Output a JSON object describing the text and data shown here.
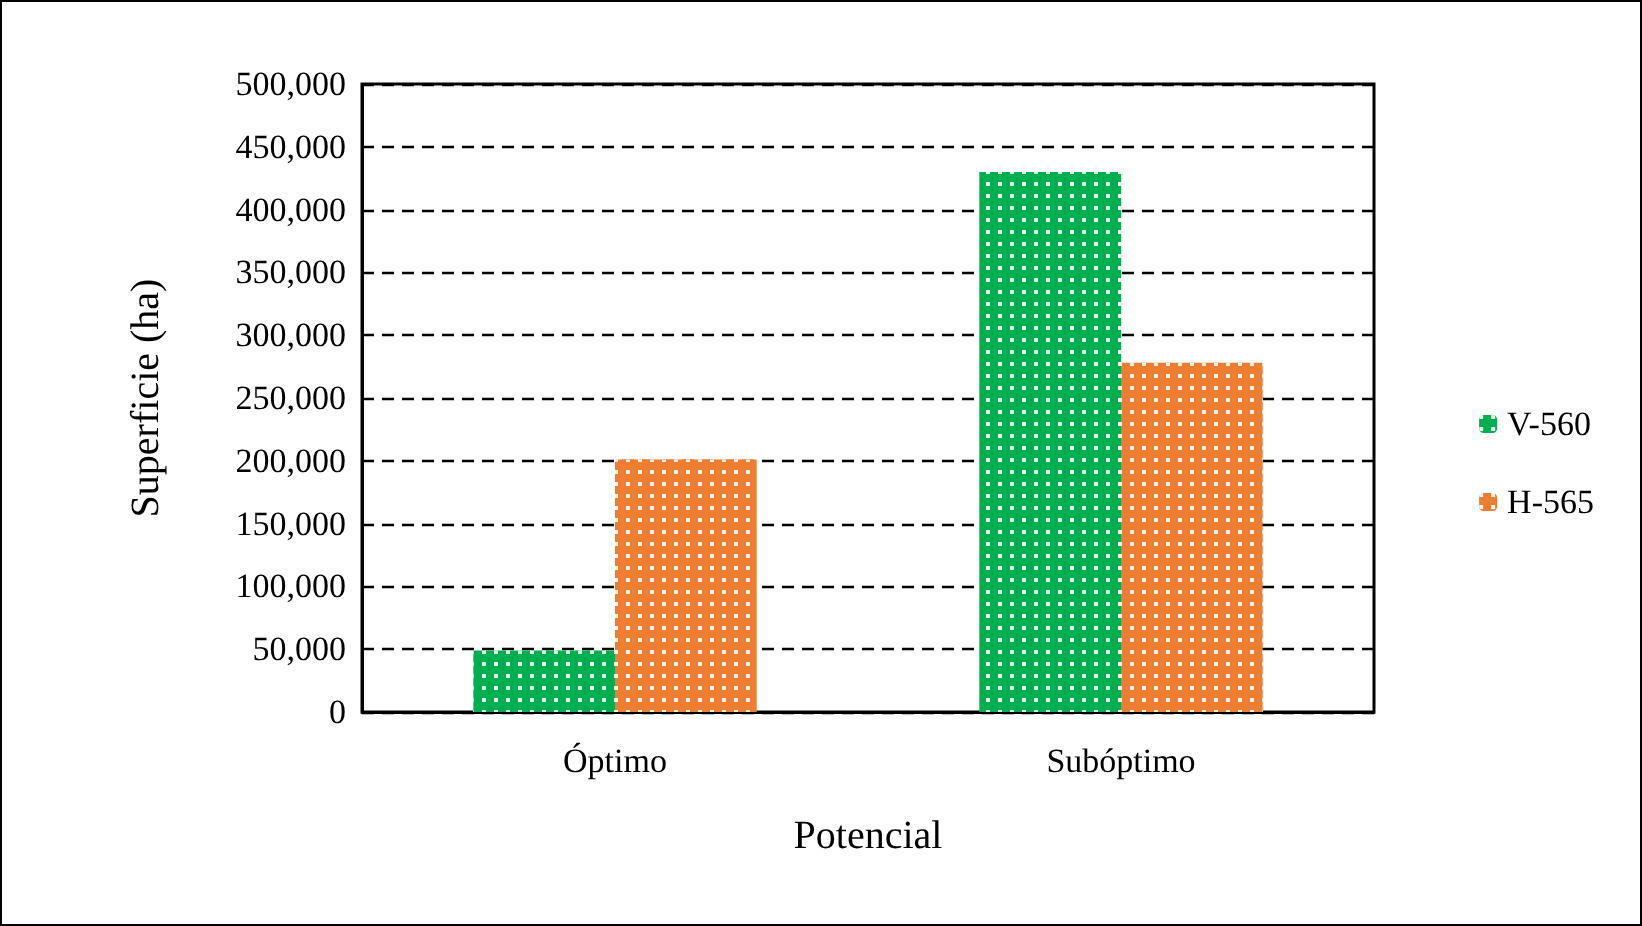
{
  "chart_data": {
    "type": "bar",
    "xlabel": "Potencial",
    "ylabel": "Superficie (ha)",
    "categories": [
      "Óptimo",
      "Subóptimo"
    ],
    "series": [
      {
        "name": "V-560",
        "color": "#00b050",
        "values": [
          49000,
          430000
        ]
      },
      {
        "name": "H-565",
        "color": "#ed7d31",
        "values": [
          201000,
          278000
        ]
      }
    ],
    "ylim": [
      0,
      500000
    ],
    "yticks": [
      0,
      {
        "value": 50000,
        "label": "50,000"
      },
      {
        "value": 100000,
        "label": "100,000"
      },
      {
        "value": 150000,
        "label": "150,000"
      },
      {
        "value": 200000,
        "label": "200,000"
      },
      {
        "value": 250000,
        "label": "250,000"
      },
      {
        "value": 300000,
        "label": "300,000"
      },
      {
        "value": 350000,
        "label": "350,000"
      },
      {
        "value": 400000,
        "label": "400,000"
      },
      {
        "value": 450000,
        "label": "450,000"
      },
      {
        "value": 500000,
        "label": "500,000"
      }
    ],
    "grid": "y",
    "legend": "right"
  }
}
